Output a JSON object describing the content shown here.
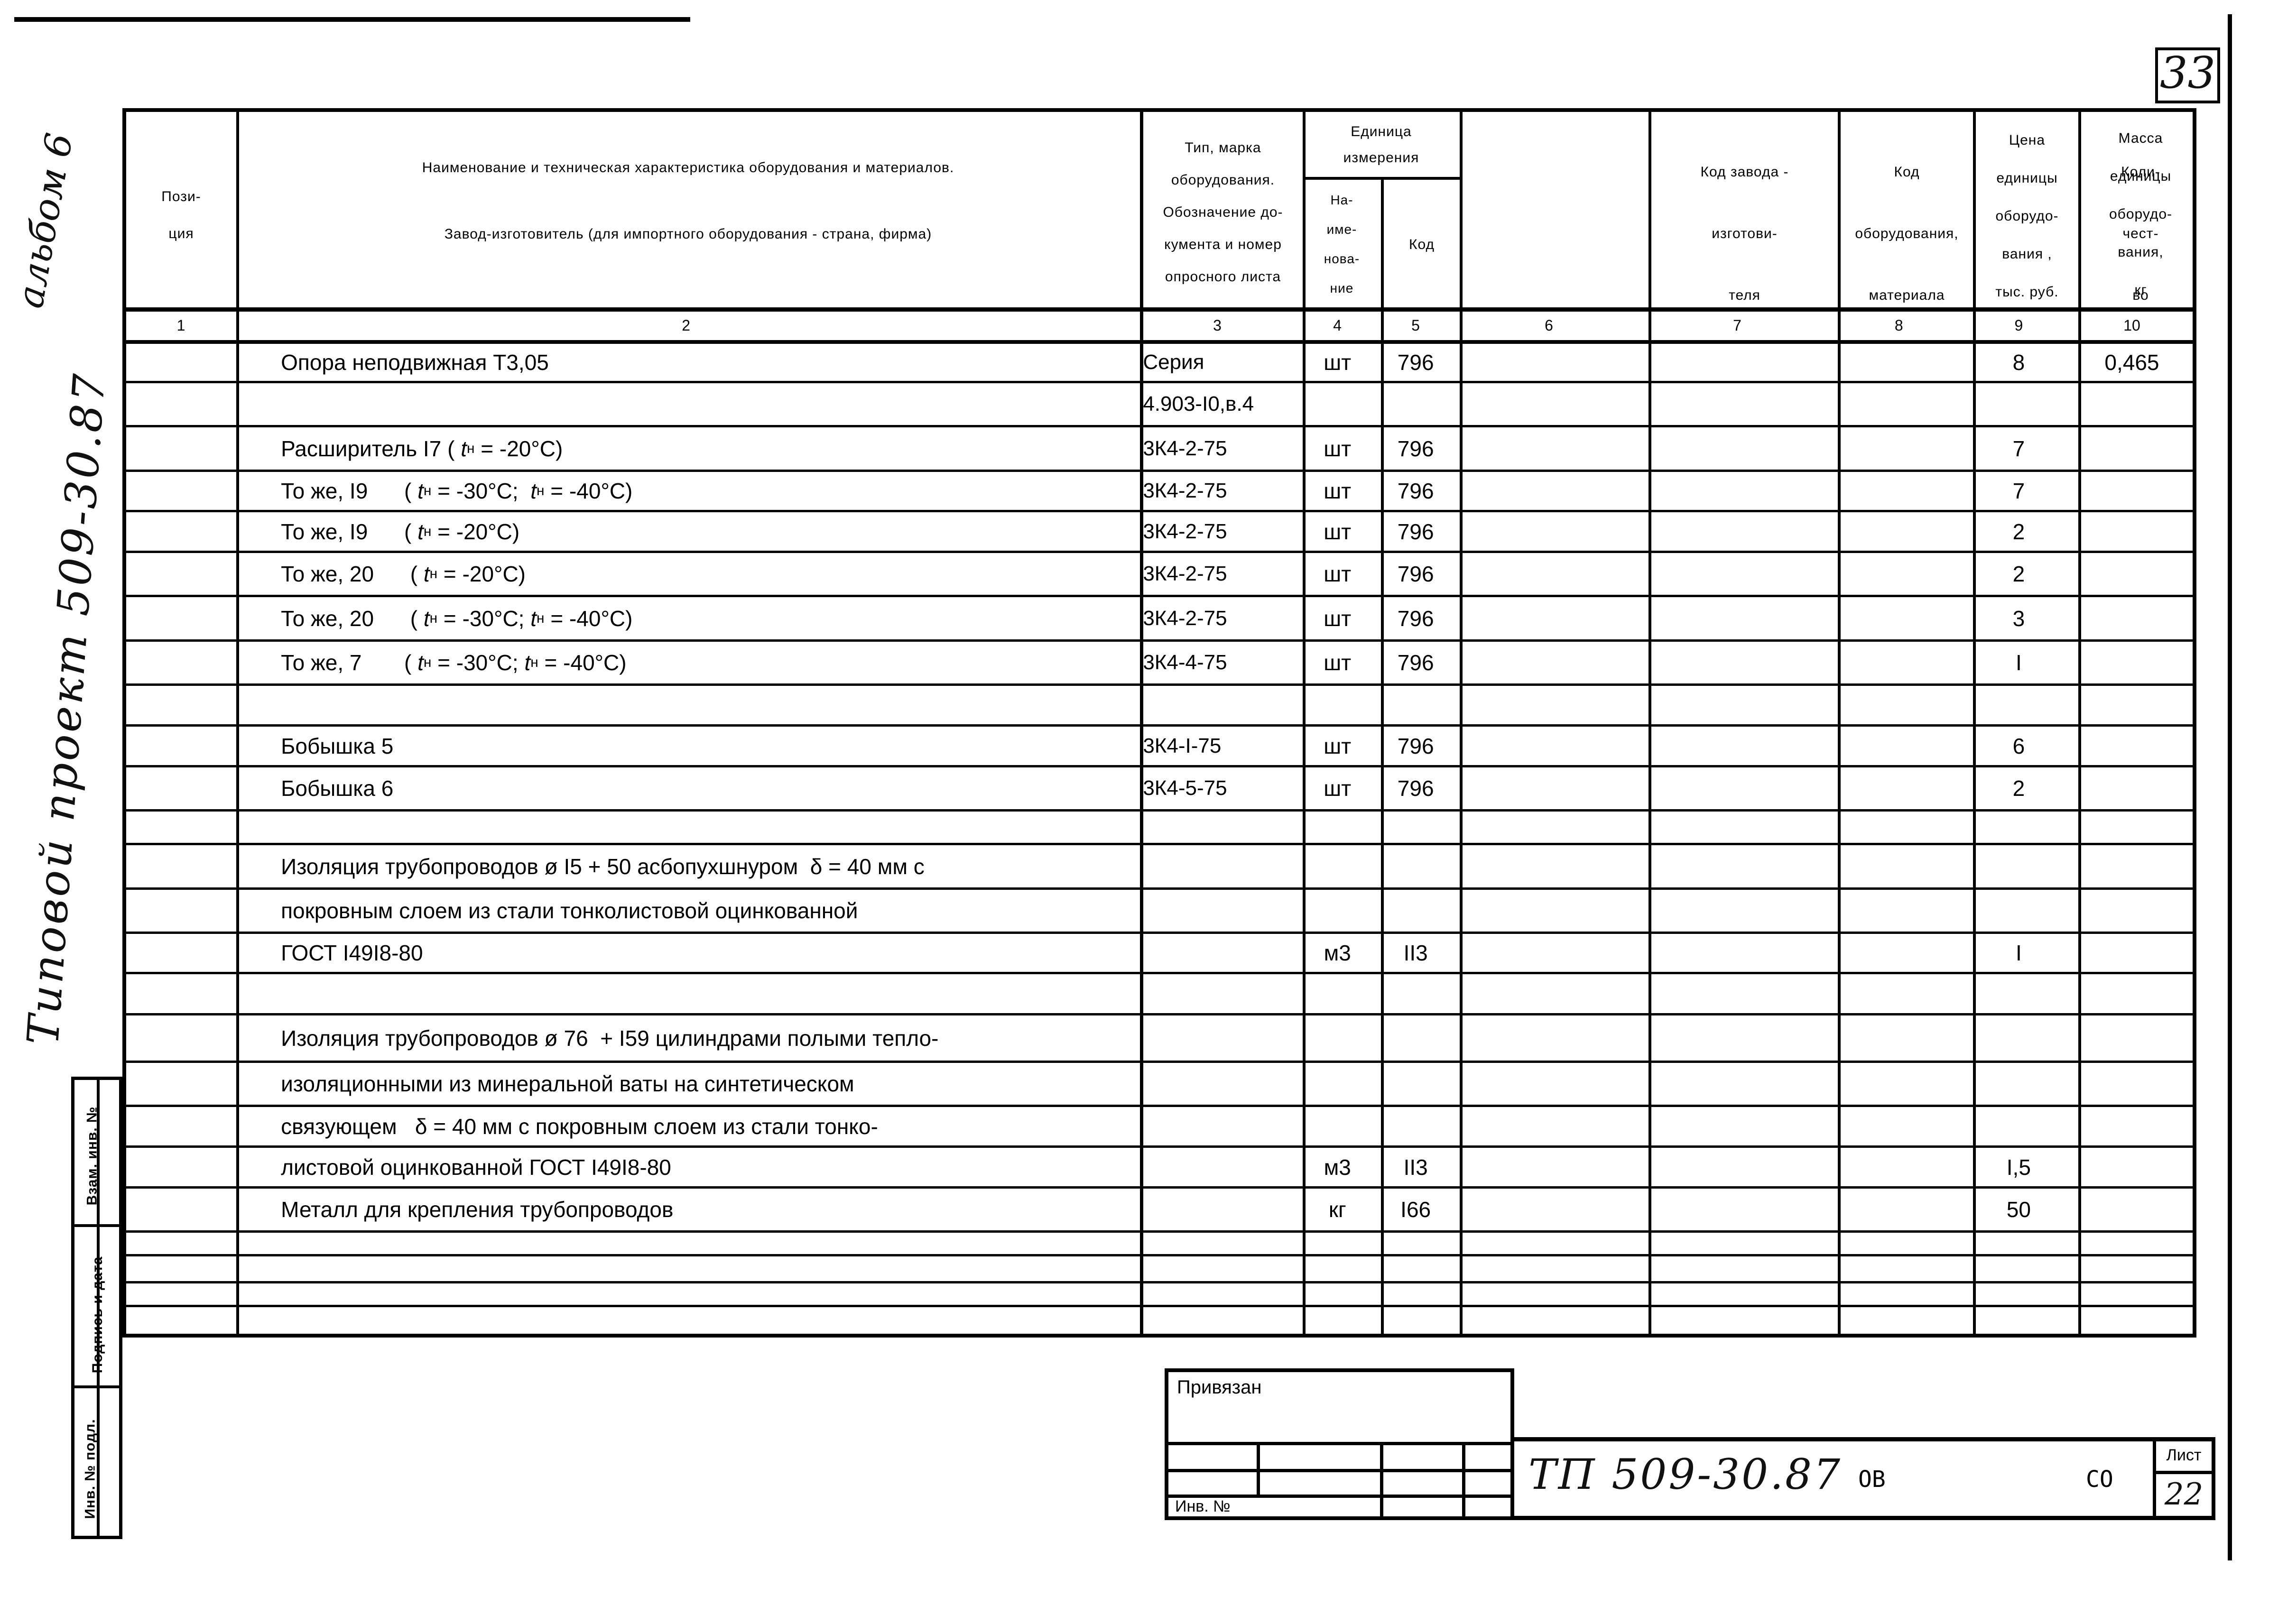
{
  "page": {
    "corner_number": "33"
  },
  "side": {
    "album": "альбом 6",
    "project": "Типовой проект 509-30.87",
    "box_labels": [
      "Взам. инв. №",
      "Подпись и дата",
      "Инв. № подл."
    ]
  },
  "table": {
    "header": {
      "c1": "Пози-\nция",
      "c2a": "Наименование и техническая характеристика  оборудования и материалов.",
      "c2b": "Завод-изготовитель  (для импортного оборудования -  страна, фирма)",
      "c3": "Тип,    марка\nоборудования.\nОбозначение до-\nкумента и номер\nопросного листа",
      "unit": "Единица\nизмерения",
      "c4": "На-\nиме-\nнова-\nние",
      "c5": "Код",
      "c6": "Код  завода -\nизготови-\nтеля",
      "c7": "Код\nоборудования,\nматериала",
      "c8": "Цена\nединицы\nоборудо-\nвания ,\nтыс. руб.",
      "c9": "Коли-\nчест-\nво",
      "c10": "Масса\nединицы\nоборудо-\nвания,\nкг"
    },
    "col_numbers": [
      "1",
      "2",
      "3",
      "4",
      "5",
      "6",
      "7",
      "8",
      "9",
      "10"
    ],
    "rows": [
      {
        "h": 83,
        "name": "Опора неподвижная Т3,05",
        "type": "Серия",
        "unit": "шт",
        "code": "796",
        "qty": "8",
        "mass": "0,465"
      },
      {
        "h": 93,
        "name": "",
        "type": "4.903-I0,в.4",
        "unit": "",
        "code": "",
        "qty": "",
        "mass": ""
      },
      {
        "h": 94,
        "name": "Расширитель I7 ( t_н = -20°С)",
        "type": "3К4-2-75",
        "unit": "шт",
        "code": "796",
        "qty": "7",
        "mass": ""
      },
      {
        "h": 85,
        "name": "То же, I9      ( t_н = -30°С;  t_н = -40°С)",
        "type": "3К4-2-75",
        "unit": "шт",
        "code": "796",
        "qty": "7",
        "mass": ""
      },
      {
        "h": 86,
        "name": "То же, I9      ( t_н = -20°С)",
        "type": "3К4-2-75",
        "unit": "шт",
        "code": "796",
        "qty": "2",
        "mass": ""
      },
      {
        "h": 93,
        "name": "То же, 20      ( t_н = -20°С)",
        "type": "3К4-2-75",
        "unit": "шт",
        "code": "796",
        "qty": "2",
        "mass": ""
      },
      {
        "h": 94,
        "name": "То же, 20      ( t_н = -30°С; t_н = -40°С)",
        "type": "3К4-2-75",
        "unit": "шт",
        "code": "796",
        "qty": "3",
        "mass": ""
      },
      {
        "h": 93,
        "name": "То же, 7       ( t_н = -30°С; t_н = -40°С)",
        "type": "3К4-4-75",
        "unit": "шт",
        "code": "796",
        "qty": "I",
        "mass": ""
      },
      {
        "h": 86,
        "name": "",
        "type": "",
        "unit": "",
        "code": "",
        "qty": "",
        "mass": ""
      },
      {
        "h": 86,
        "name": "Бобышка 5",
        "type": "3К4-I-75",
        "unit": "шт",
        "code": "796",
        "qty": "6",
        "mass": ""
      },
      {
        "h": 93,
        "name": "Бобышка 6",
        "type": "3К4-5-75",
        "unit": "шт",
        "code": "796",
        "qty": "2",
        "mass": ""
      },
      {
        "h": 71,
        "name": "",
        "type": "",
        "unit": "",
        "code": "",
        "qty": "",
        "mass": ""
      },
      {
        "h": 94,
        "name": "Изоляция трубопроводов ø I5 + 50 асбопухшнуром  δ = 40 мм с",
        "type": "",
        "unit": "",
        "code": "",
        "qty": "",
        "mass": ""
      },
      {
        "h": 93,
        "name": "покровным слоем из стали тонколистовой оцинкованной",
        "type": "",
        "unit": "",
        "code": "",
        "qty": "",
        "mass": ""
      },
      {
        "h": 85,
        "name": "ГОСТ I49I8-80",
        "type": "",
        "unit": "м3",
        "code": "II3",
        "qty": "I",
        "mass": ""
      },
      {
        "h": 87,
        "name": "",
        "type": "",
        "unit": "",
        "code": "",
        "qty": "",
        "mass": ""
      },
      {
        "h": 100,
        "name": "Изоляция трубопроводов ø 76  + I59 цилиндрами полыми тепло-",
        "type": "",
        "unit": "",
        "code": "",
        "qty": "",
        "mass": ""
      },
      {
        "h": 93,
        "name": "изоляционными из минеральной ваты на синтетическом",
        "type": "",
        "unit": "",
        "code": "",
        "qty": "",
        "mass": ""
      },
      {
        "h": 86,
        "name": "связующем   δ = 40 мм с покровным слоем из стали тонко-",
        "type": "",
        "unit": "",
        "code": "",
        "qty": "",
        "mass": ""
      },
      {
        "h": 86,
        "name": "листовой оцинкованной ГОСТ I49I8-80",
        "type": "",
        "unit": "м3",
        "code": "II3",
        "qty": "I,5",
        "mass": ""
      },
      {
        "h": 93,
        "name": "Металл для крепления трубопроводов",
        "type": "",
        "unit": "кг",
        "code": "I66",
        "qty": "50",
        "mass": ""
      },
      {
        "h": 50,
        "name": "",
        "type": "",
        "unit": "",
        "code": "",
        "qty": "",
        "mass": ""
      },
      {
        "h": 57,
        "name": "",
        "type": "",
        "unit": "",
        "code": "",
        "qty": "",
        "mass": ""
      },
      {
        "h": 50,
        "name": "",
        "type": "",
        "unit": "",
        "code": "",
        "qty": "",
        "mass": ""
      },
      {
        "h": 72,
        "name": "",
        "type": "",
        "unit": "",
        "code": "",
        "qty": "",
        "mass": ""
      }
    ]
  },
  "stamp": {
    "title": "Привязан",
    "inv": "Инв. №"
  },
  "titleblock": {
    "doc": "ТП 509-30.87",
    "mark1": "ОВ",
    "mark2": "СО",
    "sheet_label": "Лист",
    "sheet": "22"
  }
}
